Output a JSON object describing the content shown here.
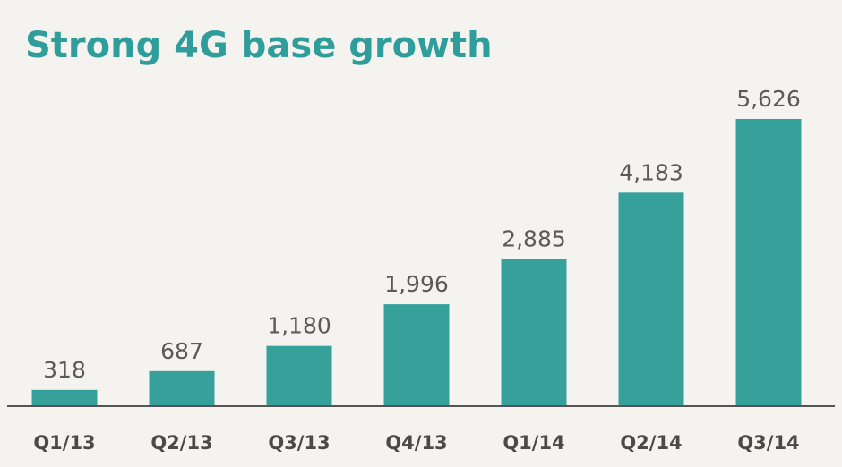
{
  "chart_data": {
    "type": "bar",
    "title": "Strong 4G base growth",
    "categories": [
      "Q1/13",
      "Q2/13",
      "Q3/13",
      "Q4/13",
      "Q1/14",
      "Q2/14",
      "Q3/14"
    ],
    "values": [
      318,
      687,
      1180,
      1996,
      2885,
      4183,
      5626
    ],
    "value_labels": [
      "318",
      "687",
      "1,180",
      "1,996",
      "2,885",
      "4,183",
      "5,626"
    ],
    "ylim": [
      0,
      5626
    ],
    "grid": false,
    "legend": "none",
    "colors": {
      "bar": "#36a09b",
      "title": "#2f9e9a",
      "axis": "#555555"
    }
  }
}
